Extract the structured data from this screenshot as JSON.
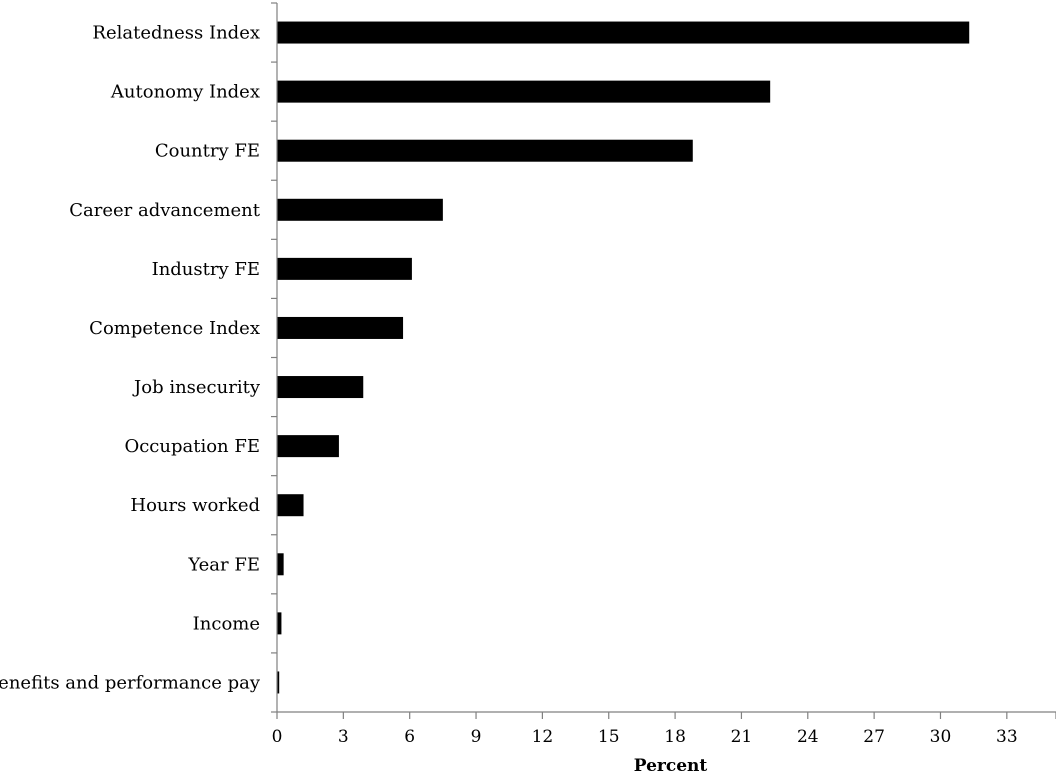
{
  "chart_data": {
    "type": "bar",
    "orientation": "horizontal",
    "categories": [
      "Relatedness Index",
      "Autonomy Index",
      "Country FE",
      "Career advancement",
      "Industry FE",
      "Competence Index",
      "Job insecurity",
      "Occupation FE",
      "Hours worked",
      "Year FE",
      "Income",
      "Benefits and performance pay"
    ],
    "values": [
      31.3,
      22.3,
      18.8,
      7.5,
      6.1,
      5.7,
      3.9,
      2.8,
      1.2,
      0.3,
      0.2,
      0.1
    ],
    "xlabel": "Percent",
    "ylabel": "",
    "title": "",
    "xlim": [
      0,
      34.5
    ],
    "xticks": [
      0,
      3,
      6,
      9,
      12,
      15,
      18,
      21,
      24,
      27,
      30,
      33
    ],
    "grid": false,
    "legend": "none",
    "bar_color": "#000000",
    "axis_color": "#808080"
  }
}
